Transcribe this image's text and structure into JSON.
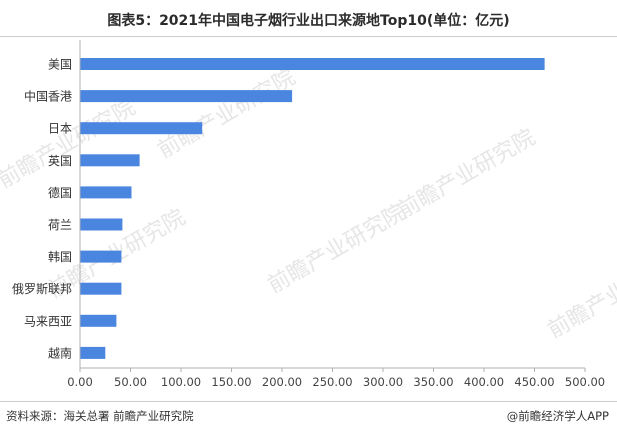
{
  "title": "图表5：2021年中国电子烟行业出口来源地Top10(单位：亿元)",
  "footer": {
    "source": "资料来源：海关总署 前瞻产业研究院",
    "credit": "@前瞻经济学人APP"
  },
  "watermark": "前瞻产业研究院",
  "colors": {
    "bar": "#4a86e0",
    "axis": "#b0b0b0",
    "text": "#333333"
  },
  "chart_data": {
    "type": "bar",
    "orientation": "horizontal",
    "title": "图表5：2021年中国电子烟行业出口来源地Top10(单位：亿元)",
    "categories": [
      "美国",
      "中国香港",
      "日本",
      "英国",
      "德国",
      "荷兰",
      "韩国",
      "俄罗斯联邦",
      "马来西亚",
      "越南"
    ],
    "values": [
      460,
      210,
      121,
      59,
      51,
      42,
      41,
      41,
      36,
      25
    ],
    "xlim": [
      0,
      500
    ],
    "xticks": [
      "0.00",
      "50.00",
      "100.00",
      "150.00",
      "200.00",
      "250.00",
      "300.00",
      "350.00",
      "400.00",
      "450.00",
      "500.00"
    ],
    "grid": false,
    "legend": "none"
  }
}
